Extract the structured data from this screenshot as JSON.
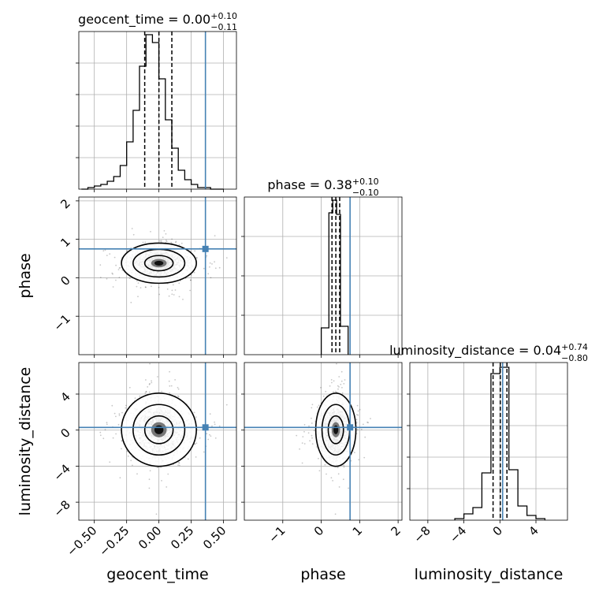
{
  "colors": {
    "truth": "#4682b4",
    "hist": "#000000",
    "grid": "#b0b0b0",
    "scatter": "#000000"
  },
  "chart_data": {
    "type": "corner",
    "parameters": [
      {
        "name": "geocent_time",
        "title_main": "geocent_time = 0.00",
        "title_plus": "+0.10",
        "title_minus": "−0.11",
        "median": 0.0,
        "q_low": -0.11,
        "q_high": 0.1,
        "truth": 0.36,
        "range": [
          -0.62,
          0.6
        ],
        "ticks": [
          -0.5,
          -0.25,
          0.0,
          0.25,
          0.5
        ],
        "tick_labels": [
          "−0.50",
          "−0.25",
          "0.00",
          "0.25",
          "0.50"
        ],
        "hist_edges": [
          -0.6,
          -0.55,
          -0.5,
          -0.45,
          -0.4,
          -0.35,
          -0.3,
          -0.25,
          -0.2,
          -0.15,
          -0.1,
          -0.05,
          0.0,
          0.05,
          0.1,
          0.15,
          0.2,
          0.25,
          0.3,
          0.35,
          0.4,
          0.45,
          0.5
        ],
        "hist_values": [
          0,
          0.01,
          0.02,
          0.03,
          0.05,
          0.08,
          0.15,
          0.3,
          0.5,
          0.78,
          0.98,
          0.93,
          0.7,
          0.44,
          0.26,
          0.12,
          0.06,
          0.03,
          0.01,
          0.01,
          0,
          0
        ],
        "hist_ylim": [
          0,
          1.0
        ],
        "hist_ticks": [
          0.2,
          0.4,
          0.6,
          0.8
        ]
      },
      {
        "name": "phase",
        "title_main": "phase = 0.38",
        "title_plus": "+0.10",
        "title_minus": "−0.10",
        "median": 0.38,
        "q_low": -0.1,
        "q_high": 0.1,
        "truth": 0.75,
        "range": [
          -2.0,
          2.1
        ],
        "ticks": [
          -1,
          0,
          1,
          2
        ],
        "tick_labels": [
          "−1",
          "0",
          "1",
          "2"
        ],
        "hist_edges": [
          0.0,
          0.2,
          0.3,
          0.4,
          0.5,
          0.7
        ],
        "hist_values": [
          0.17,
          0.9,
          0.98,
          0.89,
          0.18
        ],
        "hist_ylim": [
          0,
          1.0
        ],
        "hist_ticks": [
          0.25,
          0.5,
          0.75
        ]
      },
      {
        "name": "luminosity_distance",
        "title_main": "luminosity_distance = 0.04",
        "title_plus": "+0.74",
        "title_minus": "−0.80",
        "median": 0.04,
        "q_low": -0.8,
        "q_high": 0.74,
        "truth": 0.3,
        "range": [
          -10,
          7.5
        ],
        "ticks": [
          -8,
          -4,
          0,
          4
        ],
        "tick_labels": [
          "−8",
          "−4",
          "0",
          "4"
        ],
        "hist_edges": [
          -5,
          -4,
          -3,
          -2,
          -1,
          0,
          1,
          2,
          3,
          4,
          5
        ],
        "hist_values": [
          0.01,
          0.04,
          0.08,
          0.3,
          0.93,
          0.97,
          0.32,
          0.09,
          0.03,
          0.01
        ],
        "hist_ylim": [
          0,
          1.0
        ],
        "hist_ticks": [
          0.2,
          0.4,
          0.6,
          0.8
        ]
      }
    ],
    "scatter_spread": [
      0.1,
      0.18,
      1.4
    ],
    "grid": true,
    "truth_marker": "square"
  }
}
